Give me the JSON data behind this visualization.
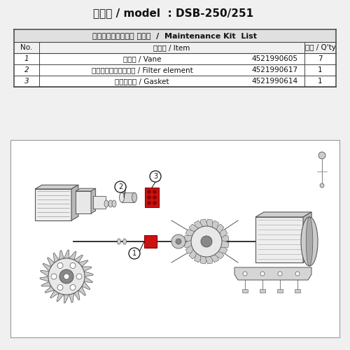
{
  "title": "機種名 / model  : DSB-250/251",
  "table_title": "メンテナンスキット リスト  /  Maintenance Kit  List",
  "col_no": "No.",
  "col_item": "部品名 / Item",
  "col_qty": "数量 / Q'ty",
  "rows": [
    [
      "1",
      "ベーン / Vane",
      "4521990605",
      "7"
    ],
    [
      "2",
      "フィルターエレメント / Filter element",
      "4521990617",
      "1"
    ],
    [
      "3",
      "ガスケット / Gasket",
      "4521990614",
      "1"
    ]
  ],
  "bg_color": "#f0f0f0",
  "table_bg": "#ffffff",
  "table_header_bg": "#e0e0e0",
  "table_border_color": "#444444",
  "diagram_bg": "#ffffff",
  "diagram_border": "#999999",
  "red_color": "#cc1111",
  "text_color": "#111111",
  "gray_dark": "#555555",
  "gray_mid": "#888888",
  "gray_light": "#cccccc",
  "gray_fill": "#e8e8e8",
  "title_fontsize": 11,
  "table_fontsize": 7.5
}
